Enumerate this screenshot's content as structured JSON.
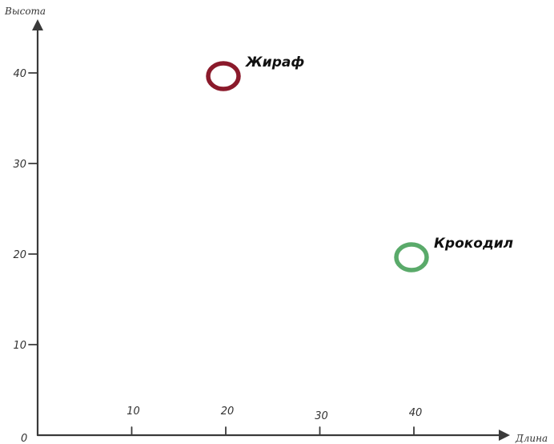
{
  "chart_data": {
    "type": "scatter",
    "xlabel": "Длина",
    "ylabel": "Высота",
    "origin_label": "0",
    "xlim": [
      0,
      47
    ],
    "ylim": [
      0,
      45
    ],
    "x_ticks": [
      10,
      20,
      30,
      40
    ],
    "y_ticks": [
      10,
      20,
      30,
      40
    ],
    "grid": false,
    "points": [
      {
        "label": "Жираф",
        "x": 20,
        "y": 40,
        "color": "#8b1a2b"
      },
      {
        "label": "Крокодил",
        "x": 40,
        "y": 20,
        "color": "#5aaa6a"
      }
    ]
  }
}
